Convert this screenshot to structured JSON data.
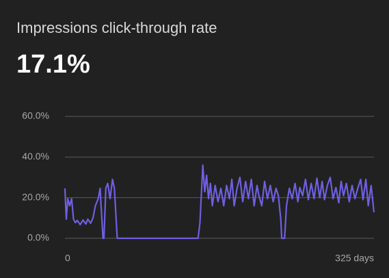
{
  "chart_data": {
    "type": "line",
    "title": "Impressions click-through rate",
    "headline_value": "17.1%",
    "x": [
      0,
      1.4,
      3,
      5,
      7,
      9,
      11,
      13,
      16,
      19,
      22,
      24,
      27,
      29.5,
      32,
      35,
      37,
      38,
      40,
      41,
      43,
      45,
      47.5,
      50,
      52,
      55,
      140,
      142,
      145,
      147,
      149,
      151,
      153,
      155,
      158,
      161,
      164,
      167,
      170,
      173,
      175.5,
      178,
      181,
      184,
      187,
      190,
      193,
      196,
      199,
      202,
      204,
      207,
      210,
      213,
      216,
      219,
      222,
      224.5,
      227,
      228,
      231,
      233,
      236,
      239,
      242,
      245,
      247,
      250,
      253,
      256,
      259,
      262,
      265,
      268,
      270.5,
      273,
      276,
      279,
      282,
      285,
      288,
      290.5,
      293,
      296,
      299,
      302,
      305,
      308,
      311,
      313.5,
      316.5,
      319,
      322,
      325
    ],
    "values": [
      24.6,
      9.4,
      19.5,
      16,
      19.5,
      9.4,
      7.7,
      8.8,
      6.7,
      9,
      7,
      9.4,
      7.4,
      10,
      16,
      19.5,
      24.6,
      16,
      0,
      0,
      24.6,
      27,
      19.5,
      29,
      24.6,
      0,
      0,
      7.7,
      36,
      22.9,
      31,
      19.5,
      27,
      16,
      26,
      18,
      24.6,
      16,
      26,
      19.5,
      29,
      16,
      24.6,
      30,
      18,
      28,
      19.5,
      29,
      16,
      26,
      21,
      16,
      28,
      19.5,
      26,
      18,
      24.6,
      21,
      9.4,
      0,
      0,
      16,
      24.6,
      19.5,
      27,
      18,
      25,
      21,
      29,
      19,
      27,
      19.5,
      29.6,
      20,
      28,
      19,
      26,
      30,
      19.5,
      25,
      17.5,
      28,
      21,
      27,
      18,
      26,
      19.5,
      24.6,
      29,
      19,
      29,
      16,
      26,
      12.8
    ],
    "color": "#6f5fe0",
    "xlim": [
      0,
      325
    ],
    "xticks": [
      0,
      {
        "value": 325,
        "label": "325 days"
      }
    ],
    "ylim": [
      0,
      60
    ],
    "yticks": [
      {
        "value": 0,
        "label": "0.0%"
      },
      {
        "value": 20,
        "label": "20.0%"
      },
      {
        "value": 40,
        "label": "40.0%"
      },
      {
        "value": 60,
        "label": "60.0%"
      }
    ],
    "grid": true
  }
}
